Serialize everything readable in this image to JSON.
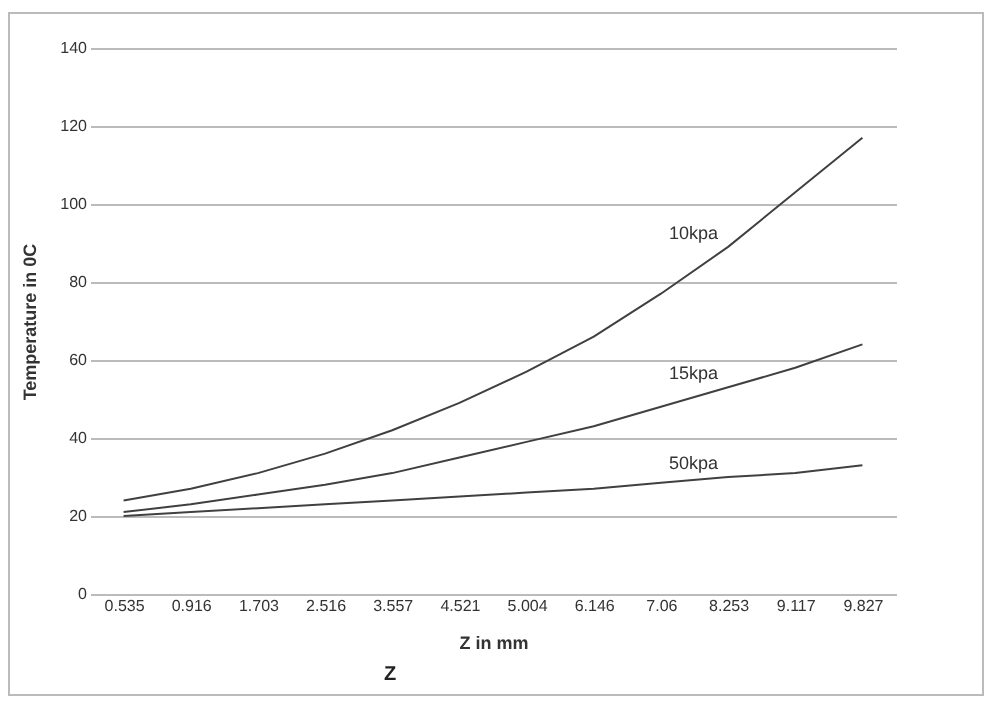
{
  "chart_data": {
    "type": "line",
    "ylabel": "Temperature in 0C",
    "xlabel": "Z in mm",
    "categories": [
      "0.535",
      "0.916",
      "1.703",
      "2.516",
      "3.557",
      "4.521",
      "5.004",
      "6.146",
      "7.06",
      "8.253",
      "9.117",
      "9.827"
    ],
    "series": [
      {
        "name": "10kpa",
        "color": "#404040",
        "values": [
          24,
          27,
          31,
          36,
          42,
          49,
          57,
          66,
          77,
          89,
          103,
          117
        ]
      },
      {
        "name": "15kpa",
        "color": "#404040",
        "values": [
          21,
          23,
          25.5,
          28,
          31,
          35,
          39,
          43,
          48,
          53,
          58,
          64
        ]
      },
      {
        "name": "50kpa",
        "color": "#404040",
        "values": [
          20,
          21,
          22,
          23,
          24,
          25,
          26,
          27,
          28.5,
          30,
          31,
          33
        ]
      }
    ],
    "annotations": [
      "Z"
    ],
    "ylim": [
      0,
      140
    ],
    "yticks": [
      0,
      20,
      40,
      60,
      80,
      100,
      120,
      140
    ],
    "grid": "y",
    "legend": false,
    "marker": "none",
    "line_style": "solid"
  }
}
